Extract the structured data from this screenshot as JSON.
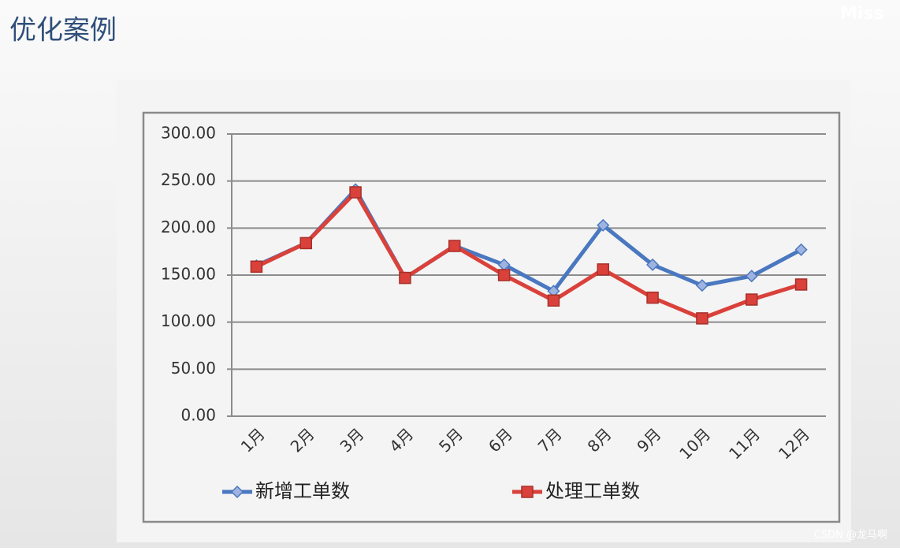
{
  "header": {
    "title": "优化案例",
    "corner_text": "Miss"
  },
  "chart_data": {
    "type": "line",
    "categories": [
      "1月",
      "2月",
      "3月",
      "4月",
      "5月",
      "6月",
      "7月",
      "8月",
      "9月",
      "10月",
      "11月",
      "12月"
    ],
    "series": [
      {
        "name": "新增工单数",
        "color": "#4a78c0",
        "marker": "diamond",
        "values": [
          160,
          184,
          241,
          147,
          181,
          161,
          133,
          203,
          161,
          139,
          149,
          177
        ]
      },
      {
        "name": "处理工单数",
        "color": "#d9413a",
        "marker": "square",
        "values": [
          159,
          184,
          238,
          147,
          181,
          150,
          123,
          156,
          126,
          104,
          124,
          140
        ]
      }
    ],
    "ylim": [
      0,
      300
    ],
    "yticks": [
      {
        "value": 0,
        "label": "0.00"
      },
      {
        "value": 50,
        "label": "50.00"
      },
      {
        "value": 100,
        "label": "100.00"
      },
      {
        "value": 150,
        "label": "150.00"
      },
      {
        "value": 200,
        "label": "200.00"
      },
      {
        "value": 250,
        "label": "250.00"
      },
      {
        "value": 300,
        "label": "300.00"
      }
    ],
    "grid": true
  },
  "watermark": "CSDN @龙马啊"
}
